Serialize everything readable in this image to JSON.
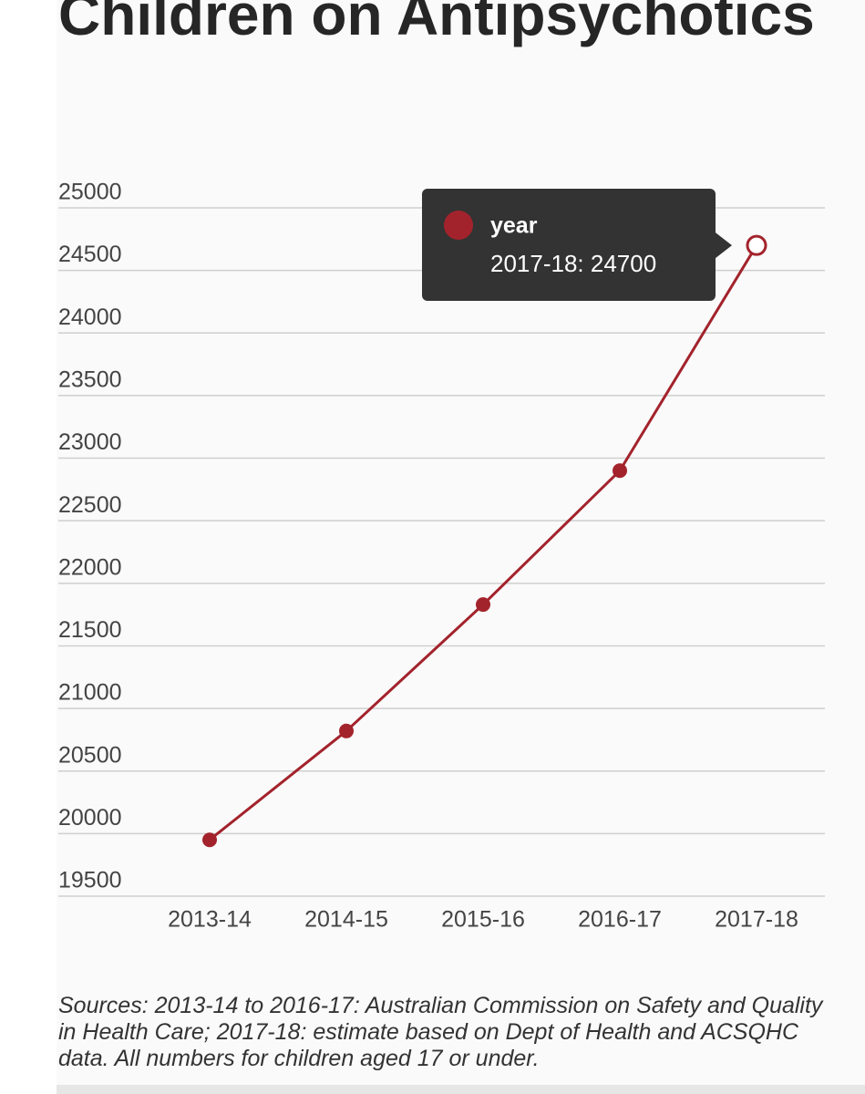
{
  "chart_data": {
    "type": "line",
    "title": "Children on Antipsychotics",
    "categories": [
      "2013-14",
      "2014-15",
      "2015-16",
      "2016-17",
      "2017-18"
    ],
    "series": [
      {
        "name": "year",
        "color": "#a3232c",
        "values": [
          19950,
          20820,
          21830,
          22900,
          24700
        ]
      }
    ],
    "ylim": [
      19500,
      25000
    ],
    "yticks": [
      19500,
      20000,
      20500,
      21000,
      21500,
      22000,
      22500,
      23000,
      23500,
      24000,
      24500,
      25000
    ],
    "grid": true,
    "hover_index": 4,
    "tooltip": {
      "series": "year",
      "text": "2017-18: 24700"
    },
    "source": "Sources: 2013-14 to 2016-17: Australian Commission on Safety and Quality in Health Care; 2017-18: estimate based on Dept of Health and ACSQHC data. All numbers for children aged 17 or under."
  }
}
